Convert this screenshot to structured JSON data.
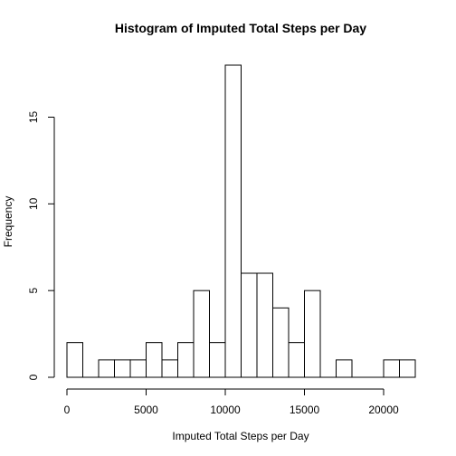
{
  "chart_data": {
    "type": "histogram",
    "title": "Histogram of Imputed Total Steps per Day",
    "xlabel": "Imputed Total Steps per Day",
    "ylabel": "Frequency",
    "bin_width": 1000,
    "x_start": 0,
    "bin_edges_start": [
      0,
      1000,
      2000,
      3000,
      4000,
      5000,
      6000,
      7000,
      8000,
      9000,
      10000,
      11000,
      12000,
      13000,
      14000,
      15000,
      16000,
      17000,
      18000,
      19000,
      20000,
      21000
    ],
    "values": [
      2,
      0,
      1,
      1,
      1,
      2,
      1,
      2,
      5,
      2,
      18,
      6,
      6,
      4,
      2,
      5,
      0,
      1,
      0,
      0,
      1,
      1
    ],
    "x_ticks": [
      0,
      5000,
      10000,
      15000,
      20000
    ],
    "x_tick_labels": [
      "0",
      "5000",
      "10000",
      "15000",
      "20000"
    ],
    "y_ticks": [
      0,
      5,
      10,
      15
    ],
    "y_tick_labels": [
      "0",
      "5",
      "10",
      "15"
    ],
    "xlim": [
      0,
      22000
    ],
    "ylim": [
      0,
      18
    ]
  }
}
